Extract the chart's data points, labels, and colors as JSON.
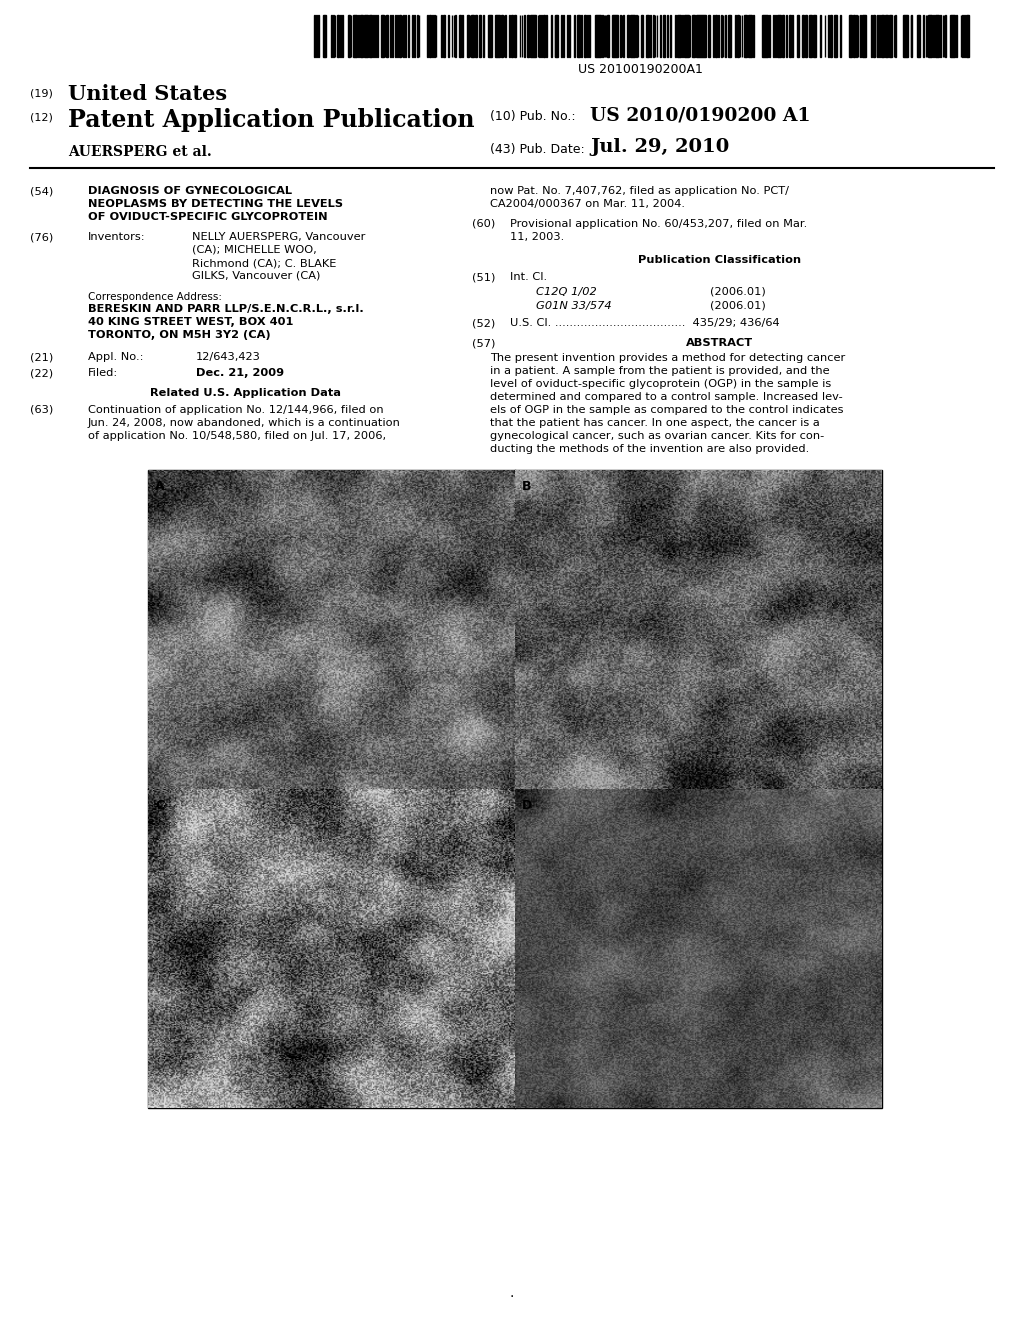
{
  "background_color": "#ffffff",
  "barcode_text": "US 20100190200A1",
  "header_19": "(19)",
  "header_19_text": "United States",
  "header_12": "(12)",
  "header_12_text": "Patent Application Publication",
  "header_assignee": "AUERSPERG et al.",
  "header_10_label": "(10) Pub. No.:",
  "header_10_value": "US 2010/0190200 A1",
  "header_43_label": "(43) Pub. Date:",
  "header_43_value": "Jul. 29, 2010",
  "field_54_label": "(54)",
  "field_54_text": "DIAGNOSIS OF GYNECOLOGICAL\nNEOPLASMS BY DETECTING THE LEVELS\nOF OVIDUCT-SPECIFIC GLYCOPROTEIN",
  "field_76_label": "(76)",
  "field_76_title": "Inventors:",
  "field_76_text": "NELLY AUERSPERG, Vancouver\n(CA); MICHELLE WOO,\nRichmond (CA); C. BLAKE\nGILKS, Vancouver (CA)",
  "corr_label": "Correspondence Address:",
  "corr_text": "BERESKIN AND PARR LLP/S.E.N.C.R.L., s.r.l.\n40 KING STREET WEST, BOX 401\nTORONTO, ON M5H 3Y2 (CA)",
  "field_21_label": "(21)",
  "field_21_title": "Appl. No.:",
  "field_21_value": "12/643,423",
  "field_22_label": "(22)",
  "field_22_title": "Filed:",
  "field_22_value": "Dec. 21, 2009",
  "related_title": "Related U.S. Application Data",
  "field_63_label": "(63)",
  "field_63_text": "Continuation of application No. 12/144,966, filed on\nJun. 24, 2008, now abandoned, which is a continuation\nof application No. 10/548,580, filed on Jul. 17, 2006,",
  "right_63_text": "now Pat. No. 7,407,762, filed as application No. PCT/\nCA2004/000367 on Mar. 11, 2004.",
  "field_60_label": "(60)",
  "field_60_text": "Provisional application No. 60/453,207, filed on Mar.\n11, 2003.",
  "pub_class_title": "Publication Classification",
  "field_51_label": "(51)",
  "field_51_title": "Int. Cl.",
  "field_51_c12q": "C12Q 1/02",
  "field_51_c12q_year": "(2006.01)",
  "field_51_g01n": "G01N 33/574",
  "field_51_g01n_year": "(2006.01)",
  "field_52_label": "(52)",
  "field_52_title": "U.S. Cl.",
  "field_52_value": "435/29; 436/64",
  "field_57_label": "(57)",
  "field_57_title": "ABSTRACT",
  "field_57_text": "The present invention provides a method for detecting cancer\nin a patient. A sample from the patient is provided, and the\nlevel of oviduct-specific glycoprotein (OGP) in the sample is\ndetermined and compared to a control sample. Increased lev-\nels of OGP in the sample as compared to the control indicates\nthat the patient has cancer. In one aspect, the cancer is a\ngynecological cancer, such as ovarian cancer. Kits for con-\nducting the methods of the invention are also provided.",
  "page_dot": "·"
}
